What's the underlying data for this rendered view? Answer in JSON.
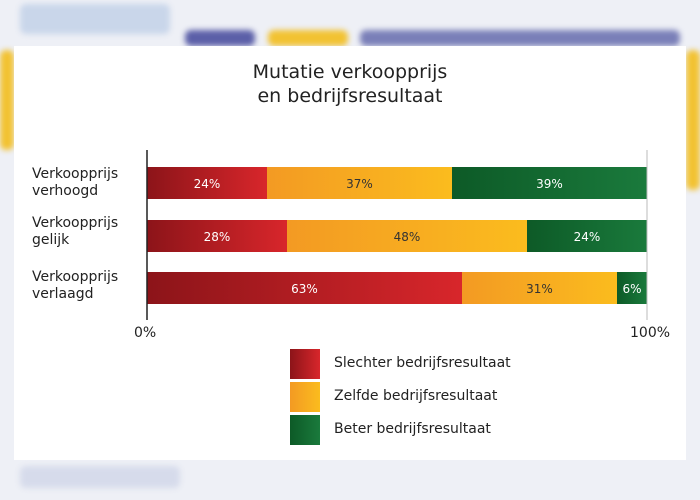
{
  "chart_data": {
    "type": "bar",
    "orientation": "horizontal",
    "stacked": true,
    "title_lines": [
      "Mutatie verkoopprijs",
      "en bedrijfsresultaat"
    ],
    "categories": [
      [
        "Verkoopprijs",
        "verhoogd"
      ],
      [
        "Verkoopprijs",
        "gelijk"
      ],
      [
        "Verkoopprijs",
        "verlaagd"
      ]
    ],
    "series": [
      {
        "name": "Slechter bedrijfsresultaat",
        "values": [
          24,
          28,
          63
        ],
        "color": "#d8262b",
        "color_dark": "#8c1419"
      },
      {
        "name": "Zelfde bedrijfsresultaat",
        "values": [
          37,
          48,
          31
        ],
        "color": "#fbbc1e",
        "color_dark": "#f39a23"
      },
      {
        "name": "Beter bedrijfsresultaat",
        "values": [
          39,
          24,
          6
        ],
        "color": "#1a7a3c",
        "color_dark": "#0d5a27"
      }
    ],
    "value_suffix": "%",
    "xlim": [
      0,
      100
    ],
    "x_tick_labels": [
      "0%",
      "100%"
    ],
    "legend_position": "bottom",
    "grid": false
  }
}
